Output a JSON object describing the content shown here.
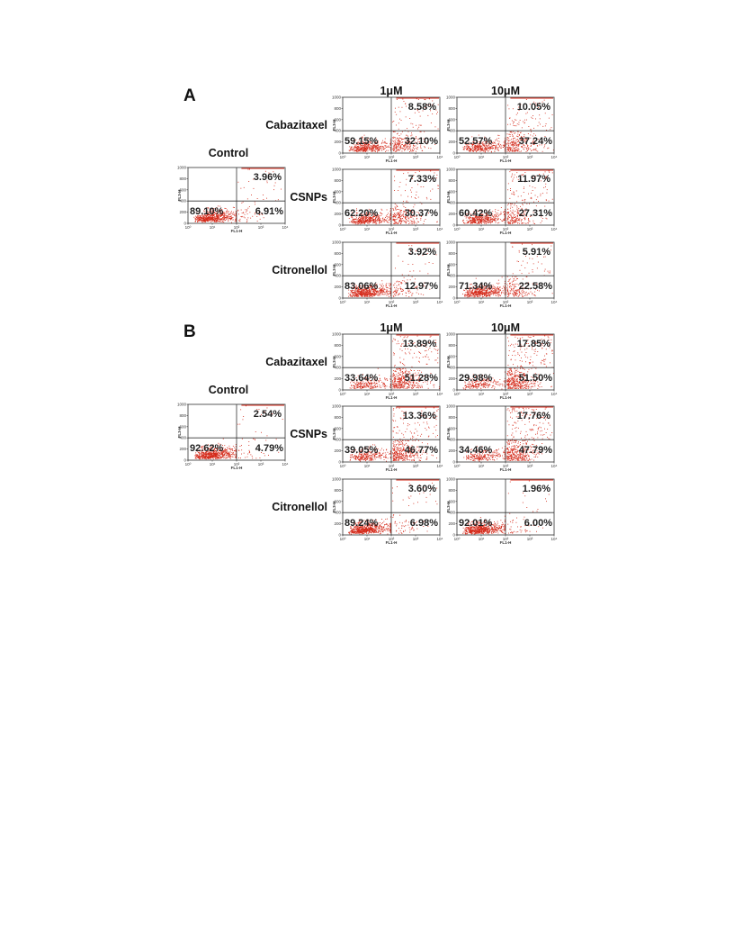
{
  "chart_data": {
    "type": "scatter",
    "x_axis_label": "FL1-H",
    "y_axis_label": "FL3-H",
    "x_ticks": [
      "10⁰",
      "10¹",
      "10²",
      "10³",
      "10⁴"
    ],
    "y_ticks": [
      "0",
      "200",
      "400",
      "600",
      "800",
      "1000"
    ],
    "x_range": [
      1,
      10000
    ],
    "y_range": [
      0,
      1023
    ],
    "x_scale": "log",
    "colors": {
      "dots": "#d42a1a",
      "frame": "#333333"
    },
    "panels": [
      {
        "letter": "A",
        "columns": [
          "1μM",
          "10μM"
        ],
        "control": {
          "label": "Control",
          "q_ll": "89.10%",
          "q_ur": "3.96%",
          "q_lr": "6.91%"
        },
        "rows": [
          {
            "label": "Cabazitaxel",
            "plots": [
              {
                "q_ll": "59.15%",
                "q_ur": "8.58%",
                "q_lr": "32.10%"
              },
              {
                "q_ll": "52.57%",
                "q_ur": "10.05%",
                "q_lr": "37.24%"
              }
            ]
          },
          {
            "label": "CSNPs",
            "plots": [
              {
                "q_ll": "62.20%",
                "q_ur": "7.33%",
                "q_lr": "30.37%"
              },
              {
                "q_ll": "60.42%",
                "q_ur": "11.97%",
                "q_lr": "27.31%"
              }
            ]
          },
          {
            "label": "Citronellol",
            "plots": [
              {
                "q_ll": "83.06%",
                "q_ur": "3.92%",
                "q_lr": "12.97%"
              },
              {
                "q_ll": "71.34%",
                "q_ur": "5.91%",
                "q_lr": "22.58%"
              }
            ]
          }
        ]
      },
      {
        "letter": "B",
        "columns": [
          "1μM",
          "10μM"
        ],
        "control": {
          "label": "Control",
          "q_ll": "92.62%",
          "q_ur": "2.54%",
          "q_lr": "4.79%"
        },
        "rows": [
          {
            "label": "Cabazitaxel",
            "plots": [
              {
                "q_ll": "33.64%",
                "q_ur": "13.89%",
                "q_lr": "51.28%"
              },
              {
                "q_ll": "29.98%",
                "q_ur": "17.85%",
                "q_lr": "51.50%"
              }
            ]
          },
          {
            "label": "CSNPs",
            "plots": [
              {
                "q_ll": "39.05%",
                "q_ur": "13.36%",
                "q_lr": "46.77%"
              },
              {
                "q_ll": "34.46%",
                "q_ur": "17.76%",
                "q_lr": "47.79%"
              }
            ]
          },
          {
            "label": "Citronellol",
            "plots": [
              {
                "q_ll": "89.24%",
                "q_ur": "3.60%",
                "q_lr": "6.98%"
              },
              {
                "q_ll": "92.01%",
                "q_ur": "1.96%",
                "q_lr": "6.00%"
              }
            ]
          }
        ]
      }
    ]
  }
}
